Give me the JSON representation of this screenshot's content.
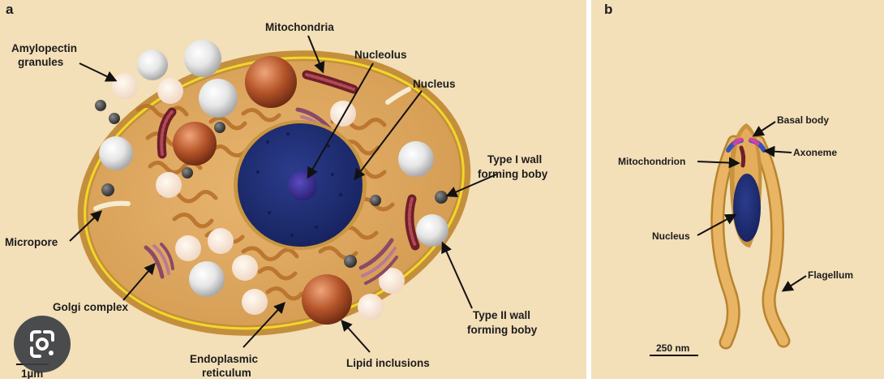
{
  "panel_a": {
    "letter": "a",
    "labels": {
      "mitochondria": "Mitochondria",
      "amylopectin_1": "Amylopectin",
      "amylopectin_2": "granules",
      "nucleolus": "Nucleolus",
      "nucleus": "Nucleus",
      "type1_1": "Type I wall",
      "type1_2": "forming boby",
      "micropore": "Micropore",
      "golgi": "Golgi complex",
      "type2_1": "Type II wall",
      "type2_2": "forming boby",
      "er_1": "Endoplasmic",
      "er_2": "reticulum",
      "lipid": "Lipid inclusions",
      "scale": "1µm"
    }
  },
  "panel_b": {
    "letter": "b",
    "labels": {
      "basal_body": "Basal body",
      "axoneme": "Axoneme",
      "mitochondrion": "Mitochondrion",
      "nucleus": "Nucleus",
      "flagellum": "Flagellum",
      "scale": "250 nm"
    }
  },
  "icons": {
    "lens": "google-lens-icon"
  },
  "colors": {
    "background": "#f3dfb8",
    "cytoplasm": "#dca55e",
    "nucleus": "#1c2b6b",
    "nucleolus": "#3a2f8c",
    "lipid": "#b5552a",
    "cell_wall_line": "#f1d72a"
  }
}
